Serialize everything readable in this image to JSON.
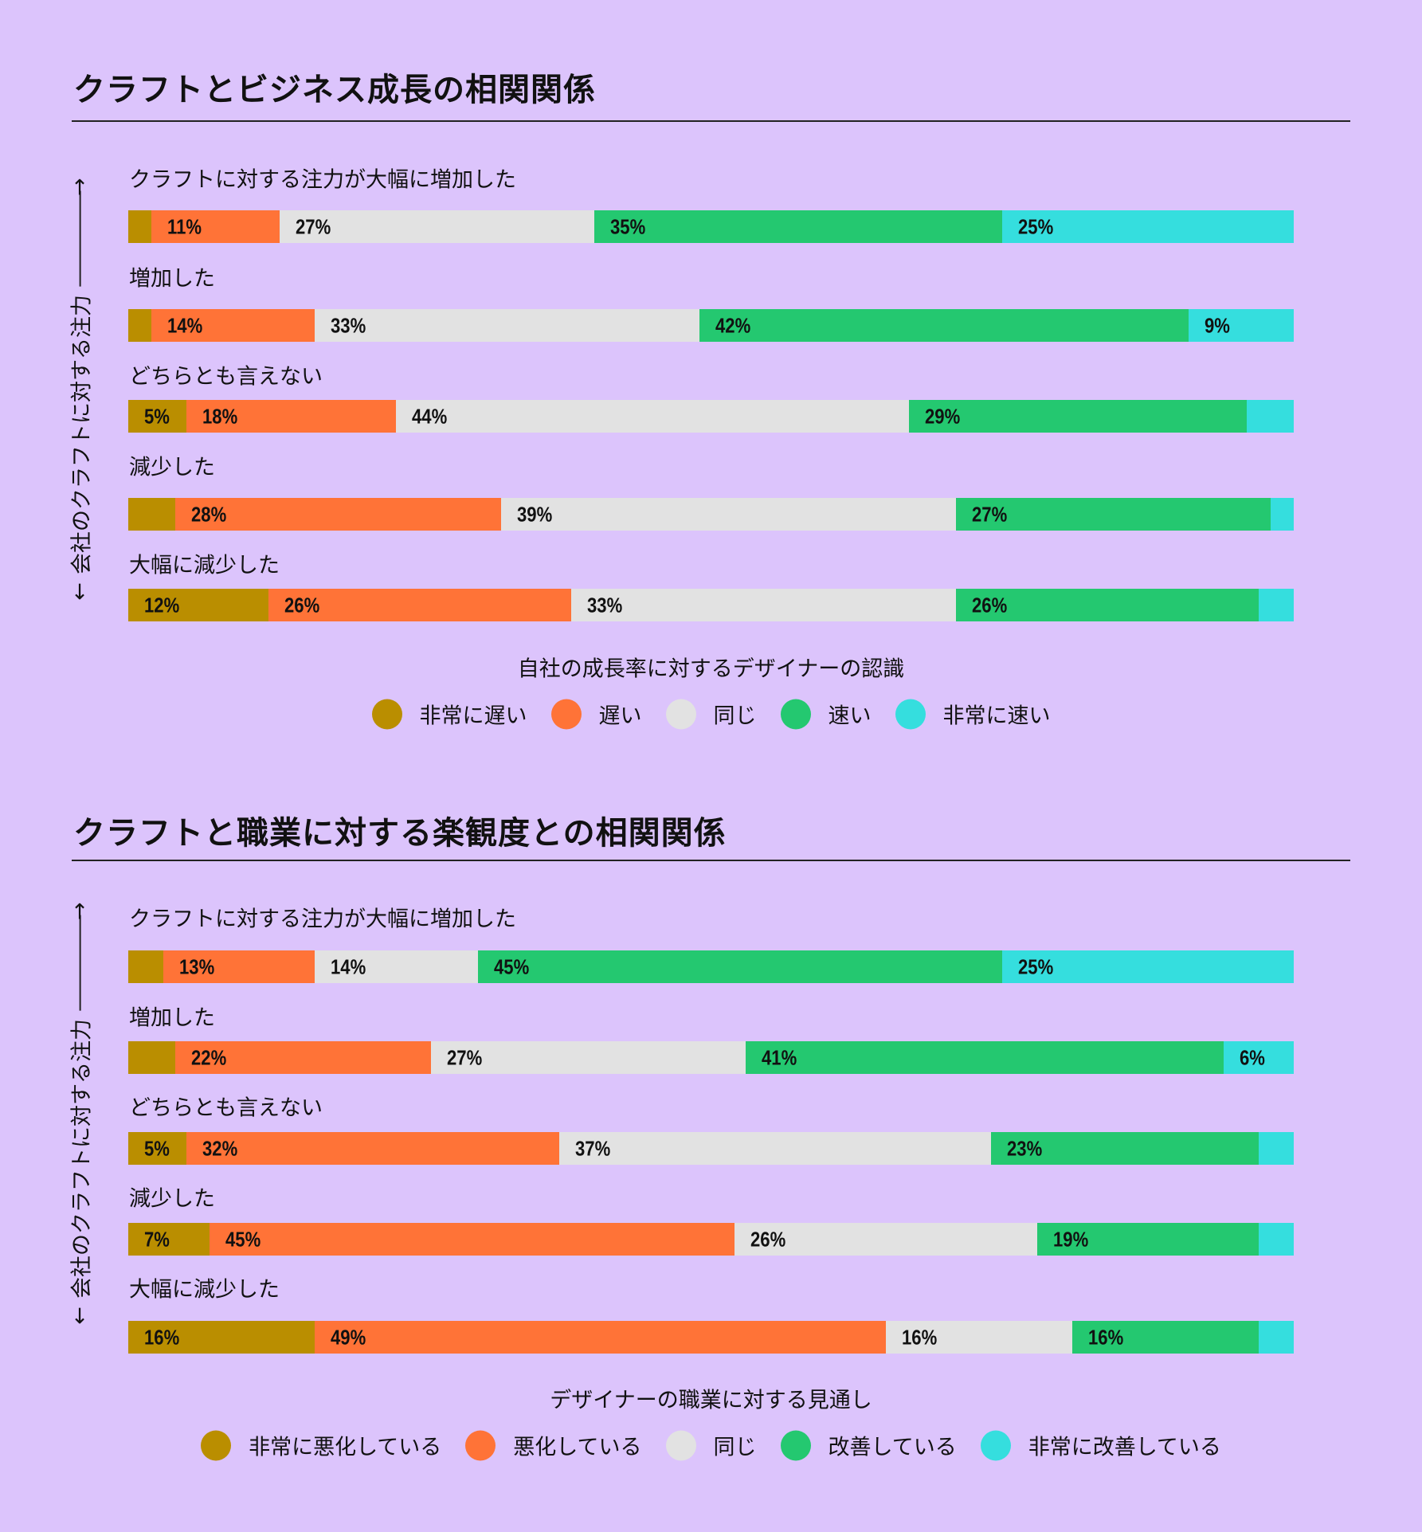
{
  "colors": {
    "very_low": "#BA8E00",
    "low": "#FF7337",
    "same": "#E2E2E2",
    "high": "#24C870",
    "very_high": "#35DEDE",
    "background": "#DCC4FC"
  },
  "chart_data": [
    {
      "type": "bar",
      "orientation": "horizontal-stacked-100",
      "title": "クラフトとビジネス成長の相関関係",
      "ylabel": "会社のクラフトに対する注力",
      "xlabel": "自社の成長率に対するデザイナーの認識",
      "legend_position": "bottom",
      "categories": [
        "クラフトに対する注力が大幅に増加した",
        "増加した",
        "どちらとも言えない",
        "減少した",
        "大幅に減少した"
      ],
      "series": [
        {
          "name": "非常に遅い",
          "color_key": "very_low",
          "values": [
            2,
            2,
            5,
            4,
            12
          ]
        },
        {
          "name": "遅い",
          "color_key": "low",
          "values": [
            11,
            14,
            18,
            28,
            26
          ]
        },
        {
          "name": "同じ",
          "color_key": "same",
          "values": [
            27,
            33,
            44,
            39,
            33
          ]
        },
        {
          "name": "速い",
          "color_key": "high",
          "values": [
            35,
            42,
            29,
            27,
            26
          ]
        },
        {
          "name": "非常に速い",
          "color_key": "very_high",
          "values": [
            25,
            9,
            4,
            2,
            3
          ]
        }
      ]
    },
    {
      "type": "bar",
      "orientation": "horizontal-stacked-100",
      "title": "クラフトと職業に対する楽観度との相関関係",
      "ylabel": "会社のクラフトに対する注力",
      "xlabel": "デザイナーの職業に対する見通し",
      "legend_position": "bottom",
      "categories": [
        "クラフトに対する注力が大幅に増加した",
        "増加した",
        "どちらとも言えない",
        "減少した",
        "大幅に減少した"
      ],
      "series": [
        {
          "name": "非常に悪化している",
          "color_key": "very_low",
          "values": [
            3,
            4,
            5,
            7,
            16
          ]
        },
        {
          "name": "悪化している",
          "color_key": "low",
          "values": [
            13,
            22,
            32,
            45,
            49
          ]
        },
        {
          "name": "同じ",
          "color_key": "same",
          "values": [
            14,
            27,
            37,
            26,
            16
          ]
        },
        {
          "name": "改善している",
          "color_key": "high",
          "values": [
            45,
            41,
            23,
            19,
            16
          ]
        },
        {
          "name": "非常に改善している",
          "color_key": "very_high",
          "values": [
            25,
            6,
            3,
            3,
            3
          ]
        }
      ]
    }
  ]
}
